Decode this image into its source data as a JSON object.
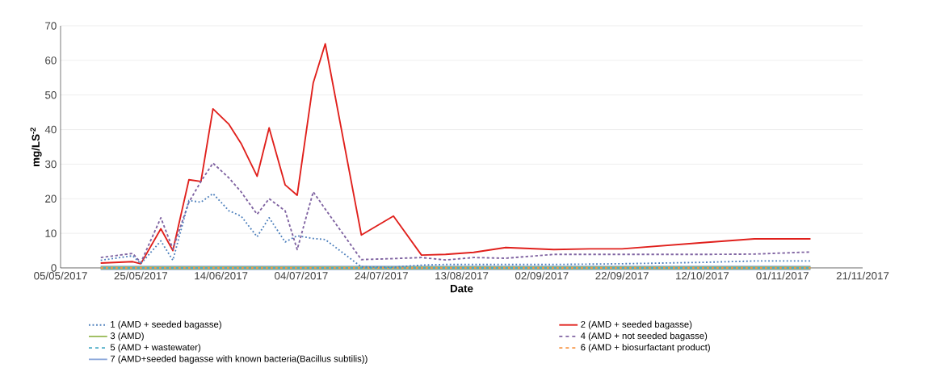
{
  "chart_data": {
    "type": "line",
    "xlabel": "Date",
    "ylabel": "mg/LS$^{-2}$",
    "x": [
      "2017-05-15",
      "2017-05-23",
      "2017-05-25",
      "2017-05-30",
      "2017-06-02",
      "2017-06-06",
      "2017-06-09",
      "2017-06-12",
      "2017-06-16",
      "2017-06-19",
      "2017-06-23",
      "2017-06-26",
      "2017-06-30",
      "2017-07-03",
      "2017-07-07",
      "2017-07-10",
      "2017-07-19",
      "2017-07-27",
      "2017-08-03",
      "2017-08-09",
      "2017-08-16",
      "2017-08-24",
      "2017-09-05",
      "2017-09-14",
      "2017-09-22",
      "2017-10-12",
      "2017-10-25",
      "2017-11-08"
    ],
    "series": [
      {
        "name": "1 (AMD +  seeded bagasse)",
        "color": "#4f81bd",
        "line_style": "dotted",
        "values": [
          2.2,
          3.5,
          1.2,
          7.8,
          2.2,
          19.5,
          19,
          21.5,
          16.5,
          15,
          9,
          14.5,
          7.5,
          9.3,
          8.5,
          8.2,
          0.3,
          0.2,
          0.8,
          1.0,
          1.0,
          1.0,
          1.0,
          1.1,
          1.2,
          1.6,
          2.0,
          2.0
        ]
      },
      {
        "name": "2 (AMD + seeded bagasse)",
        "color": "#e0201c",
        "line_style": "solid",
        "values": [
          1.4,
          1.8,
          1.2,
          11.3,
          5,
          25.5,
          25,
          46,
          41.5,
          36,
          26.5,
          40.5,
          24,
          21,
          53.5,
          64.8,
          9.5,
          15,
          3.7,
          3.9,
          4.5,
          5.9,
          5.3,
          5.5,
          5.5,
          7.3,
          8.4,
          8.4
        ]
      },
      {
        "name": "3 (AMD)",
        "color": "#9bbb59",
        "line_style": "solid",
        "values": [
          0,
          0,
          0,
          0,
          0,
          0,
          0,
          0,
          0,
          0,
          0,
          0,
          0,
          0,
          0,
          0,
          0,
          0,
          0,
          0,
          0,
          0,
          0,
          0,
          0,
          0,
          0,
          0
        ]
      },
      {
        "name": "4 (AMD + not seeded bagasse)",
        "color": "#8064a2",
        "line_style": "dashed",
        "values": [
          3,
          4.2,
          1.5,
          14.5,
          5.5,
          19,
          25,
          30.3,
          26,
          22,
          15.5,
          20,
          16.5,
          5.3,
          22,
          17,
          2.4,
          2.7,
          3.0,
          2.3,
          3.0,
          2.8,
          3.9,
          3.9,
          3.9,
          3.9,
          4.0,
          4.6
        ]
      },
      {
        "name": "5 (AMD + wastewater)",
        "color": "#4bacc6",
        "line_style": "dashed",
        "values": [
          0,
          0,
          0,
          0,
          0,
          0,
          0,
          0,
          0,
          0,
          0,
          0,
          0,
          0,
          0,
          0,
          0,
          0,
          0,
          0,
          0,
          0,
          0,
          0,
          0,
          0,
          0,
          0
        ]
      },
      {
        "name": "6 (AMD + biosurfactant product)",
        "color": "#f79646",
        "line_style": "dashed",
        "values": [
          0,
          0,
          0,
          0,
          0,
          0,
          0,
          0,
          0,
          0,
          0,
          0,
          0,
          0,
          0,
          0,
          0,
          0,
          0,
          0,
          0,
          0,
          0,
          0,
          0,
          0,
          0,
          0
        ]
      },
      {
        "name": "7 (AMD+seeded bagasse with known bacteria(Bacillus subtilis))",
        "color": "#8ea9db",
        "line_style": "solid",
        "values": [
          0,
          0,
          0,
          0,
          0,
          0,
          0,
          0,
          0,
          0,
          0,
          0,
          0,
          0,
          0,
          0,
          0,
          0,
          0,
          0,
          0,
          0,
          0,
          0,
          0,
          0,
          0,
          0
        ]
      }
    ],
    "xlim": [
      "2017-05-05",
      "2017-11-21"
    ],
    "xticks": [
      {
        "value": "2017-05-05",
        "label": "05/05/2017"
      },
      {
        "value": "2017-05-25",
        "label": "25/05/2017"
      },
      {
        "value": "2017-06-14",
        "label": "14/06/2017"
      },
      {
        "value": "2017-07-04",
        "label": "04/07/2017"
      },
      {
        "value": "2017-07-24",
        "label": "24/07/2017"
      },
      {
        "value": "2017-08-13",
        "label": "13/08/2017"
      },
      {
        "value": "2017-09-02",
        "label": "02/09/2017"
      },
      {
        "value": "2017-09-22",
        "label": "22/09/2017"
      },
      {
        "value": "2017-10-12",
        "label": "12/10/2017"
      },
      {
        "value": "2017-11-01",
        "label": "01/11/2017"
      },
      {
        "value": "2017-11-21",
        "label": "21/11/2017"
      }
    ],
    "ylim": [
      0,
      70
    ],
    "yticks": [
      0,
      10,
      20,
      30,
      40,
      50,
      60,
      70
    ],
    "grid": "y",
    "legend": "bottom",
    "marker": "none"
  }
}
